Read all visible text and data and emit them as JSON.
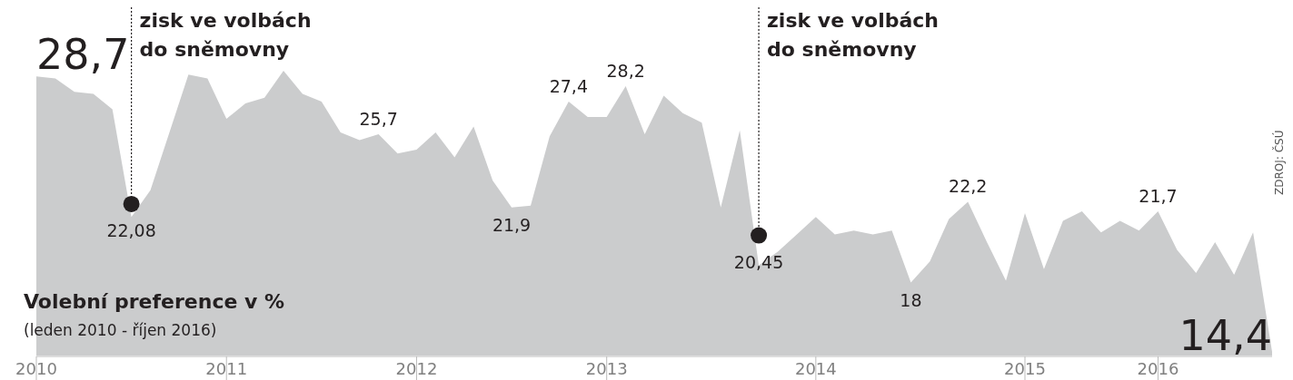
{
  "chart_data": {
    "type": "area",
    "title": "Volební preference v %",
    "subtitle": "(leden 2010 - říjen 2016)",
    "annotations": [
      "zisk ve volbách do sněmovny",
      "zisk ve volbách do sněmovny",
      "ZDROJ: ČSÚ"
    ],
    "categories": [
      "2010",
      null,
      null,
      null,
      null,
      null,
      null,
      null,
      null,
      null,
      "2011",
      null,
      null,
      null,
      null,
      null,
      null,
      null,
      null,
      null,
      "2012",
      null,
      null,
      null,
      null,
      null,
      null,
      null,
      null,
      null,
      "2013",
      null,
      null,
      null,
      null,
      null,
      null,
      null,
      null,
      null,
      null,
      "2014",
      null,
      null,
      null,
      null,
      null,
      null,
      null,
      null,
      null,
      null,
      "2015",
      null,
      null,
      null,
      null,
      null,
      null,
      "2016",
      null,
      null,
      null,
      null,
      null,
      null
    ],
    "tick_labels": "x",
    "series": [
      {
        "color": "#cbcccd",
        "values": [
          28.7,
          28.6,
          27.9,
          27.8,
          27.0,
          21.4,
          22.8,
          25.8,
          28.8,
          28.6,
          26.5,
          27.3,
          27.6,
          29.0,
          27.8,
          27.4,
          25.8,
          25.4,
          25.7,
          24.7,
          24.9,
          25.8,
          24.5,
          26.1,
          23.3,
          21.9,
          22.0,
          25.6,
          27.4,
          26.6,
          26.6,
          28.2,
          25.7,
          27.7,
          26.8,
          26.3,
          21.9,
          25.9,
          18.9,
          19.6,
          20.5,
          21.4,
          20.5,
          20.7,
          20.5,
          20.7,
          18,
          19.1,
          21.3,
          22.2,
          20.1,
          18.1,
          21.6,
          18.7,
          21.2,
          21.7,
          20.6,
          21.2,
          20.7,
          21.7,
          19.7,
          18.5,
          20.1,
          18.4,
          20.6,
          14.4
        ],
        "value_labels": [
          "28,7",
          null,
          null,
          null,
          null,
          null,
          null,
          null,
          null,
          null,
          null,
          null,
          null,
          null,
          null,
          null,
          null,
          null,
          "25,7",
          null,
          null,
          null,
          null,
          null,
          null,
          "21,9",
          null,
          null,
          "27,4",
          null,
          null,
          "28,2",
          null,
          null,
          null,
          null,
          null,
          null,
          null,
          null,
          null,
          null,
          null,
          null,
          null,
          null,
          "18",
          null,
          null,
          "22,2",
          null,
          null,
          null,
          null,
          null,
          null,
          null,
          null,
          null,
          "21,7",
          null,
          null,
          null,
          null,
          null,
          "14,4"
        ]
      },
      {
        "type": "scatter",
        "color": "#231f20",
        "marker": "circle",
        "values": [
          null,
          null,
          null,
          null,
          null,
          22.08,
          null,
          null,
          null,
          null,
          null,
          null,
          null,
          null,
          null,
          null,
          null,
          null,
          null,
          null,
          null,
          null,
          null,
          null,
          null,
          null,
          null,
          null,
          null,
          null,
          null,
          null,
          null,
          null,
          null,
          null,
          null,
          null,
          20.45,
          null,
          null,
          null,
          null,
          null,
          null,
          null,
          null,
          null,
          null,
          null,
          null,
          null,
          null,
          null,
          null,
          null,
          null,
          null,
          null,
          null,
          null,
          null,
          null,
          null,
          null,
          null
        ],
        "value_labels": [
          null,
          null,
          null,
          null,
          null,
          "22,08",
          null,
          null,
          null,
          null,
          null,
          null,
          null,
          null,
          null,
          null,
          null,
          null,
          null,
          null,
          null,
          null,
          null,
          null,
          null,
          null,
          null,
          null,
          null,
          null,
          null,
          null,
          null,
          null,
          null,
          null,
          null,
          null,
          "20,45",
          null,
          null,
          null,
          null,
          null,
          null,
          null,
          null,
          null,
          null,
          null,
          null,
          null,
          null,
          null,
          null,
          null,
          null,
          null,
          null,
          null,
          null,
          null,
          null,
          null,
          null,
          null
        ]
      }
    ]
  }
}
